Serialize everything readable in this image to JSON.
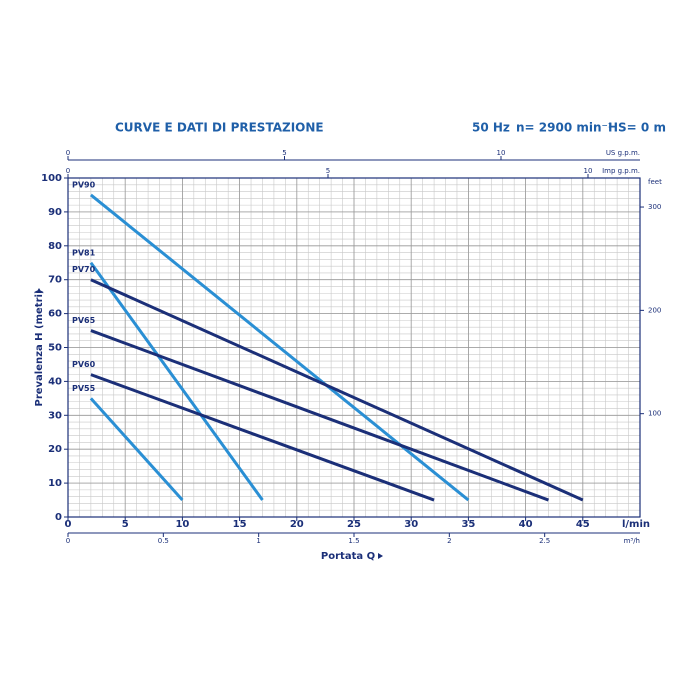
{
  "chart_data": {
    "type": "line",
    "title": "CURVE E DATI DI PRESTAZIONE",
    "header_notes": [
      "50 Hz",
      "n= 2900 min⁻¹",
      "HS= 0 m"
    ],
    "xlabel": "Portata Q",
    "ylabel": "Prevalenza H (metri)",
    "xunit": "l/min",
    "xlim": [
      0,
      50
    ],
    "ylim": [
      0,
      100
    ],
    "xticks": [
      0,
      5,
      10,
      15,
      20,
      25,
      30,
      35,
      40,
      45
    ],
    "yticks": [
      0,
      10,
      20,
      30,
      40,
      50,
      60,
      70,
      80,
      90,
      100
    ],
    "grid": true,
    "minor_grid": {
      "x": 1,
      "y": 2
    },
    "secondary_axes": [
      {
        "label": "US g.p.m.",
        "position": "top",
        "lim": [
          0,
          13.21
        ],
        "ticks": [
          0,
          5,
          10
        ]
      },
      {
        "label": "Imp g.p.m.",
        "position": "top-inner",
        "lim": [
          0,
          11.0
        ],
        "ticks": [
          0,
          5,
          10
        ]
      },
      {
        "label": "m³/h",
        "position": "bottom",
        "lim": [
          0,
          3.0
        ],
        "ticks": [
          0,
          0.5,
          1,
          1.5,
          2,
          2.5
        ]
      },
      {
        "label": "feet",
        "position": "right",
        "lim": [
          0,
          328.1
        ],
        "ticks": [
          100,
          200,
          300
        ]
      }
    ],
    "series": [
      {
        "name": "PV90",
        "color": "#2a8fd4",
        "x": [
          2,
          35
        ],
        "values": [
          95,
          5
        ]
      },
      {
        "name": "PV81",
        "color": "#2a8fd4",
        "x": [
          2,
          17
        ],
        "values": [
          75,
          5
        ]
      },
      {
        "name": "PV70",
        "color": "#1b2f78",
        "x": [
          2,
          45
        ],
        "values": [
          70,
          5
        ]
      },
      {
        "name": "PV65",
        "color": "#1b2f78",
        "x": [
          2,
          42
        ],
        "values": [
          55,
          5
        ]
      },
      {
        "name": "PV60",
        "color": "#1b2f78",
        "x": [
          2,
          32
        ],
        "values": [
          42,
          5
        ]
      },
      {
        "name": "PV55",
        "color": "#2a8fd4",
        "x": [
          2,
          10
        ],
        "values": [
          35,
          5
        ]
      }
    ]
  }
}
